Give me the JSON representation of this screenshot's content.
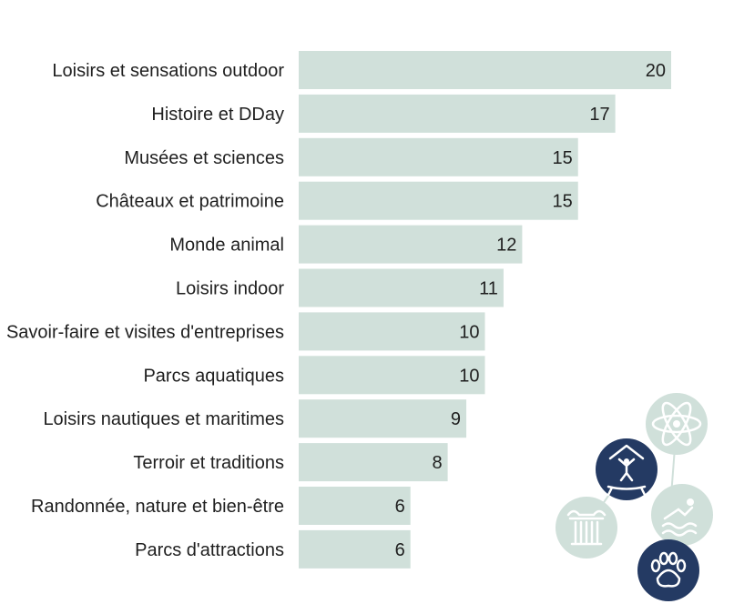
{
  "chart_data": {
    "type": "bar",
    "orientation": "horizontal",
    "categories": [
      "Loisirs et sensations outdoor",
      "Histoire et DDay",
      "Musées et sciences",
      "Châteaux et patrimoine",
      "Monde animal",
      "Loisirs indoor",
      "Savoir-faire et visites d'entreprises",
      "Parcs aquatiques",
      "Loisirs nautiques et maritimes",
      "Terroir et traditions",
      "Randonnée, nature et bien-être",
      "Parcs d'attractions"
    ],
    "values": [
      20,
      17,
      15,
      15,
      12,
      11,
      10,
      10,
      9,
      8,
      6,
      6
    ],
    "xlim": [
      0,
      20
    ],
    "grid": false,
    "data_labels": true,
    "colors": {
      "bar": "#d0e0da",
      "text": "#1f1f1f"
    }
  },
  "decoration": {
    "icons": [
      "atom-icon",
      "trampoline-icon",
      "swimmer-icon",
      "column-icon",
      "paw-icon"
    ],
    "colors": {
      "light": "#d0e0da",
      "dark": "#243a63"
    }
  }
}
